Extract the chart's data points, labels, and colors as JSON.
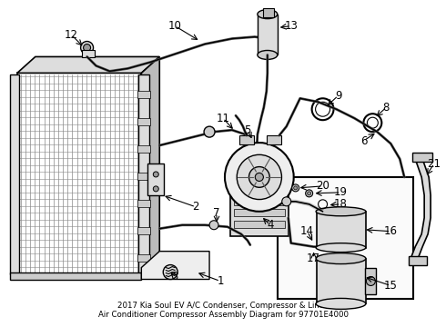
{
  "bg_color": "#ffffff",
  "line_color": "#000000",
  "fig_width": 4.9,
  "fig_height": 3.6,
  "dpi": 100,
  "title": "2017 Kia Soul EV A/C Condenser, Compressor & Lines\nAir Conditioner Compressor Assembly Diagram for 97701E4000",
  "title_fontsize": 6.2,
  "label_fontsize": 8.5,
  "gray_light": "#cccccc",
  "gray_mid": "#999999",
  "gray_dark": "#555555",
  "fill_bg": "#e8e8e8"
}
